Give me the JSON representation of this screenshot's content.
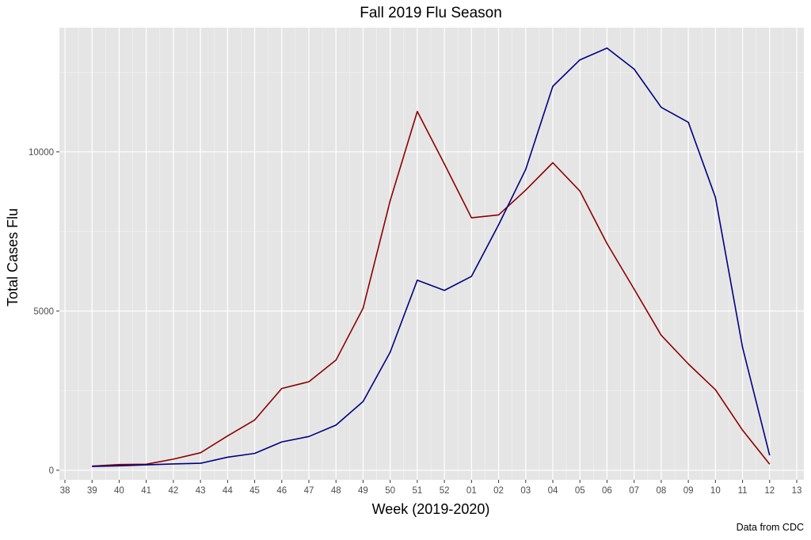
{
  "chart_data": {
    "type": "line",
    "title": "Fall 2019 Flu Season",
    "xlabel": "Week (2019-2020)",
    "ylabel": "Total Cases Flu",
    "caption": "Data from CDC",
    "categories": [
      "38",
      "39",
      "40",
      "41",
      "42",
      "43",
      "44",
      "45",
      "46",
      "47",
      "48",
      "49",
      "50",
      "51",
      "52",
      "01",
      "02",
      "03",
      "04",
      "05",
      "06",
      "07",
      "08",
      "09",
      "10",
      "11",
      "12",
      "13"
    ],
    "ylim": [
      -300,
      13900
    ],
    "yticks": [
      0,
      5000,
      10000
    ],
    "ytick_labels": [
      "0",
      "5000",
      "10000"
    ],
    "grid": true,
    "legend": "none",
    "series": [
      {
        "color": "#8b0000",
        "points": [
          [
            "39",
            130
          ],
          [
            "40",
            180
          ],
          [
            "41",
            190
          ],
          [
            "42",
            350
          ],
          [
            "43",
            550
          ],
          [
            "44",
            1080
          ],
          [
            "45",
            1580
          ],
          [
            "46",
            2570
          ],
          [
            "47",
            2780
          ],
          [
            "48",
            3460
          ],
          [
            "49",
            5090
          ],
          [
            "50",
            8470
          ],
          [
            "51",
            11270
          ],
          [
            "52",
            9620
          ],
          [
            "01",
            7930
          ],
          [
            "02",
            8020
          ],
          [
            "03",
            8800
          ],
          [
            "04",
            9660
          ],
          [
            "05",
            8770
          ],
          [
            "06",
            7120
          ],
          [
            "07",
            5690
          ],
          [
            "08",
            4240
          ],
          [
            "09",
            3340
          ],
          [
            "10",
            2530
          ],
          [
            "11",
            1260
          ],
          [
            "12",
            190
          ]
        ]
      },
      {
        "color": "#000080",
        "points": [
          [
            "39",
            120
          ],
          [
            "40",
            140
          ],
          [
            "41",
            170
          ],
          [
            "42",
            200
          ],
          [
            "43",
            220
          ],
          [
            "44",
            410
          ],
          [
            "45",
            530
          ],
          [
            "46",
            890
          ],
          [
            "47",
            1060
          ],
          [
            "48",
            1420
          ],
          [
            "49",
            2160
          ],
          [
            "50",
            3710
          ],
          [
            "51",
            5970
          ],
          [
            "52",
            5650
          ],
          [
            "01",
            6090
          ],
          [
            "02",
            7710
          ],
          [
            "03",
            9450
          ],
          [
            "04",
            12060
          ],
          [
            "05",
            12890
          ],
          [
            "06",
            13260
          ],
          [
            "07",
            12600
          ],
          [
            "08",
            11400
          ],
          [
            "09",
            10930
          ],
          [
            "10",
            8570
          ],
          [
            "11",
            3860
          ],
          [
            "12",
            470
          ]
        ]
      }
    ]
  }
}
